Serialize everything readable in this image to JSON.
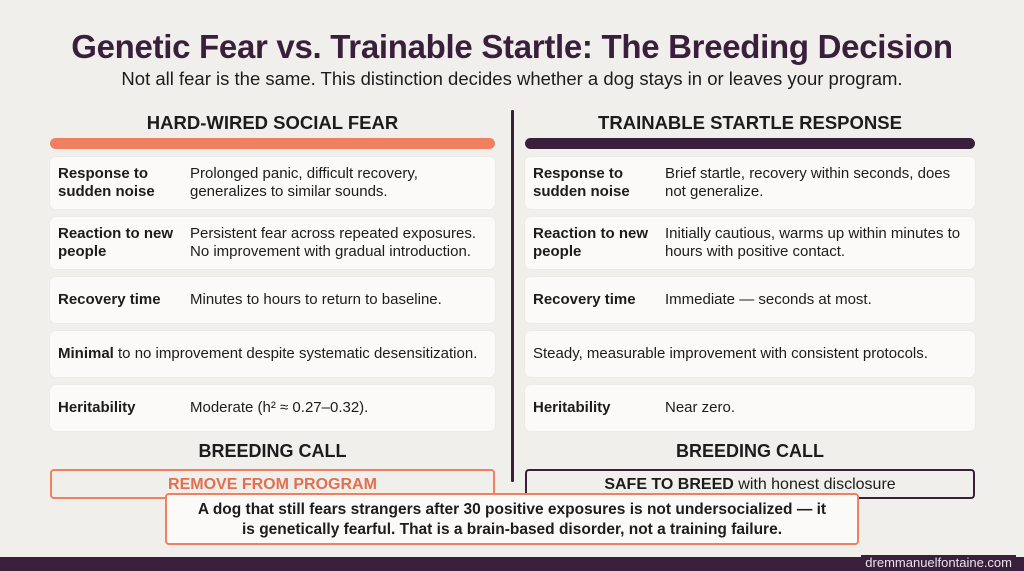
{
  "title": "Genetic Fear vs. Trainable Startle: The Breeding Decision",
  "subtitle": "Not all fear is the same. This distinction decides whether a dog stays in or leaves your program.",
  "left": {
    "heading": "HARD-WIRED SOCIAL FEAR",
    "rows": [
      {
        "label": "Response to sudden noise",
        "value": "Prolonged panic, difficult recovery, generalizes to similar sounds."
      },
      {
        "label": "Reaction to new people",
        "value": "Persistent fear across repeated exposures. No improvement with gradual introduction."
      },
      {
        "label": "Recovery time",
        "value": "Minutes to hours to return to baseline."
      },
      {
        "label": "Minimal",
        "value": "to no improvement despite systematic desensitization."
      },
      {
        "label": "Heritability",
        "value": "Moderate (h² ≈ 0.27–0.32)."
      }
    ],
    "call_heading": "BREEDING CALL",
    "call": "REMOVE FROM PROGRAM"
  },
  "right": {
    "heading": "TRAINABLE STARTLE RESPONSE",
    "rows": [
      {
        "label": "Response to sudden noise",
        "value": "Brief startle, recovery within seconds, does not generalize."
      },
      {
        "label": "Reaction to new people",
        "value": "Initially cautious, warms up within minutes to hours with positive contact."
      },
      {
        "label": "Recovery time",
        "value": "Immediate — seconds at most."
      },
      {
        "label": "",
        "value": "Steady, measurable improvement with consistent protocols."
      },
      {
        "label": "Heritability",
        "value": "Near zero."
      }
    ],
    "call_heading": "BREEDING CALL",
    "call_bold": "SAFE TO BREED",
    "call_rest": " with honest disclosure"
  },
  "note_line1": "A dog that still fears strangers after 30 positive exposures is not undersocialized — it",
  "note_line2": "is genetically fearful. That is a brain-based disorder, not a training failure.",
  "credit": "dremmanuelfontaine.com",
  "colors": {
    "accent": "#f0805f",
    "brand": "#3a1f3d",
    "background": "#f1efeb"
  }
}
